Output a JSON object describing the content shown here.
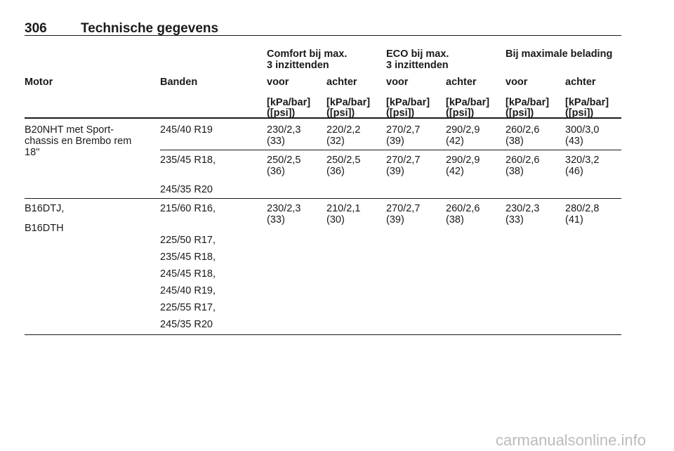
{
  "header": {
    "page_number": "306",
    "title": "Technische gegevens"
  },
  "table": {
    "group_headers": [
      [
        "Comfort bij max.",
        "3 inzittenden"
      ],
      [
        "ECO bij max.",
        "3 inzittenden"
      ],
      [
        "Bij maximale belading"
      ]
    ],
    "columns": [
      "Motor",
      "Banden",
      "voor",
      "achter",
      "voor",
      "achter",
      "voor",
      "achter"
    ],
    "units": [
      [
        "[kPa/bar]",
        "([psi])"
      ],
      [
        "[kPa/bar]",
        "([psi])"
      ],
      [
        "[kPa/bar]",
        "([psi])"
      ],
      [
        "[kPa/bar]",
        "([psi])"
      ],
      [
        "[kPa/bar]",
        "([psi])"
      ],
      [
        "[kPa/bar]",
        "([psi])"
      ]
    ],
    "groups": [
      {
        "motor": [
          "B20NHT met Sport-",
          "chassis en Brembo rem",
          "18''"
        ],
        "rows": [
          {
            "tyres": [
              "245/40 R19"
            ],
            "pressures": [
              [
                "230/2,3",
                "(33)"
              ],
              [
                "220/2,2",
                "(32)"
              ],
              [
                "270/2,7",
                "(39)"
              ],
              [
                "290/2,9",
                "(42)"
              ],
              [
                "260/2,6",
                "(38)"
              ],
              [
                "300/3,0",
                "(43)"
              ]
            ]
          },
          {
            "tyres": [
              "235/45 R18,",
              "245/35 R20"
            ],
            "pressures": [
              [
                "250/2,5",
                "(36)"
              ],
              [
                "250/2,5",
                "(36)"
              ],
              [
                "270/2,7",
                "(39)"
              ],
              [
                "290/2,9",
                "(42)"
              ],
              [
                "260/2,6",
                "(38)"
              ],
              [
                "320/3,2",
                "(46)"
              ]
            ]
          }
        ]
      },
      {
        "motor": [
          "B16DTJ,",
          "B16DTH"
        ],
        "rows": [
          {
            "tyres": [
              "215/60 R16,",
              "225/50 R17,",
              "235/45 R18,",
              "245/45 R18,",
              "245/40 R19,",
              "225/55 R17,",
              "245/35 R20"
            ],
            "pressures": [
              [
                "230/2,3",
                "(33)"
              ],
              [
                "210/2,1",
                "(30)"
              ],
              [
                "270/2,7",
                "(39)"
              ],
              [
                "260/2,6",
                "(38)"
              ],
              [
                "230/2,3",
                "(33)"
              ],
              [
                "280/2,8",
                "(41)"
              ]
            ]
          }
        ]
      }
    ]
  },
  "footer": {
    "watermark": "carmanualsonline.info"
  }
}
